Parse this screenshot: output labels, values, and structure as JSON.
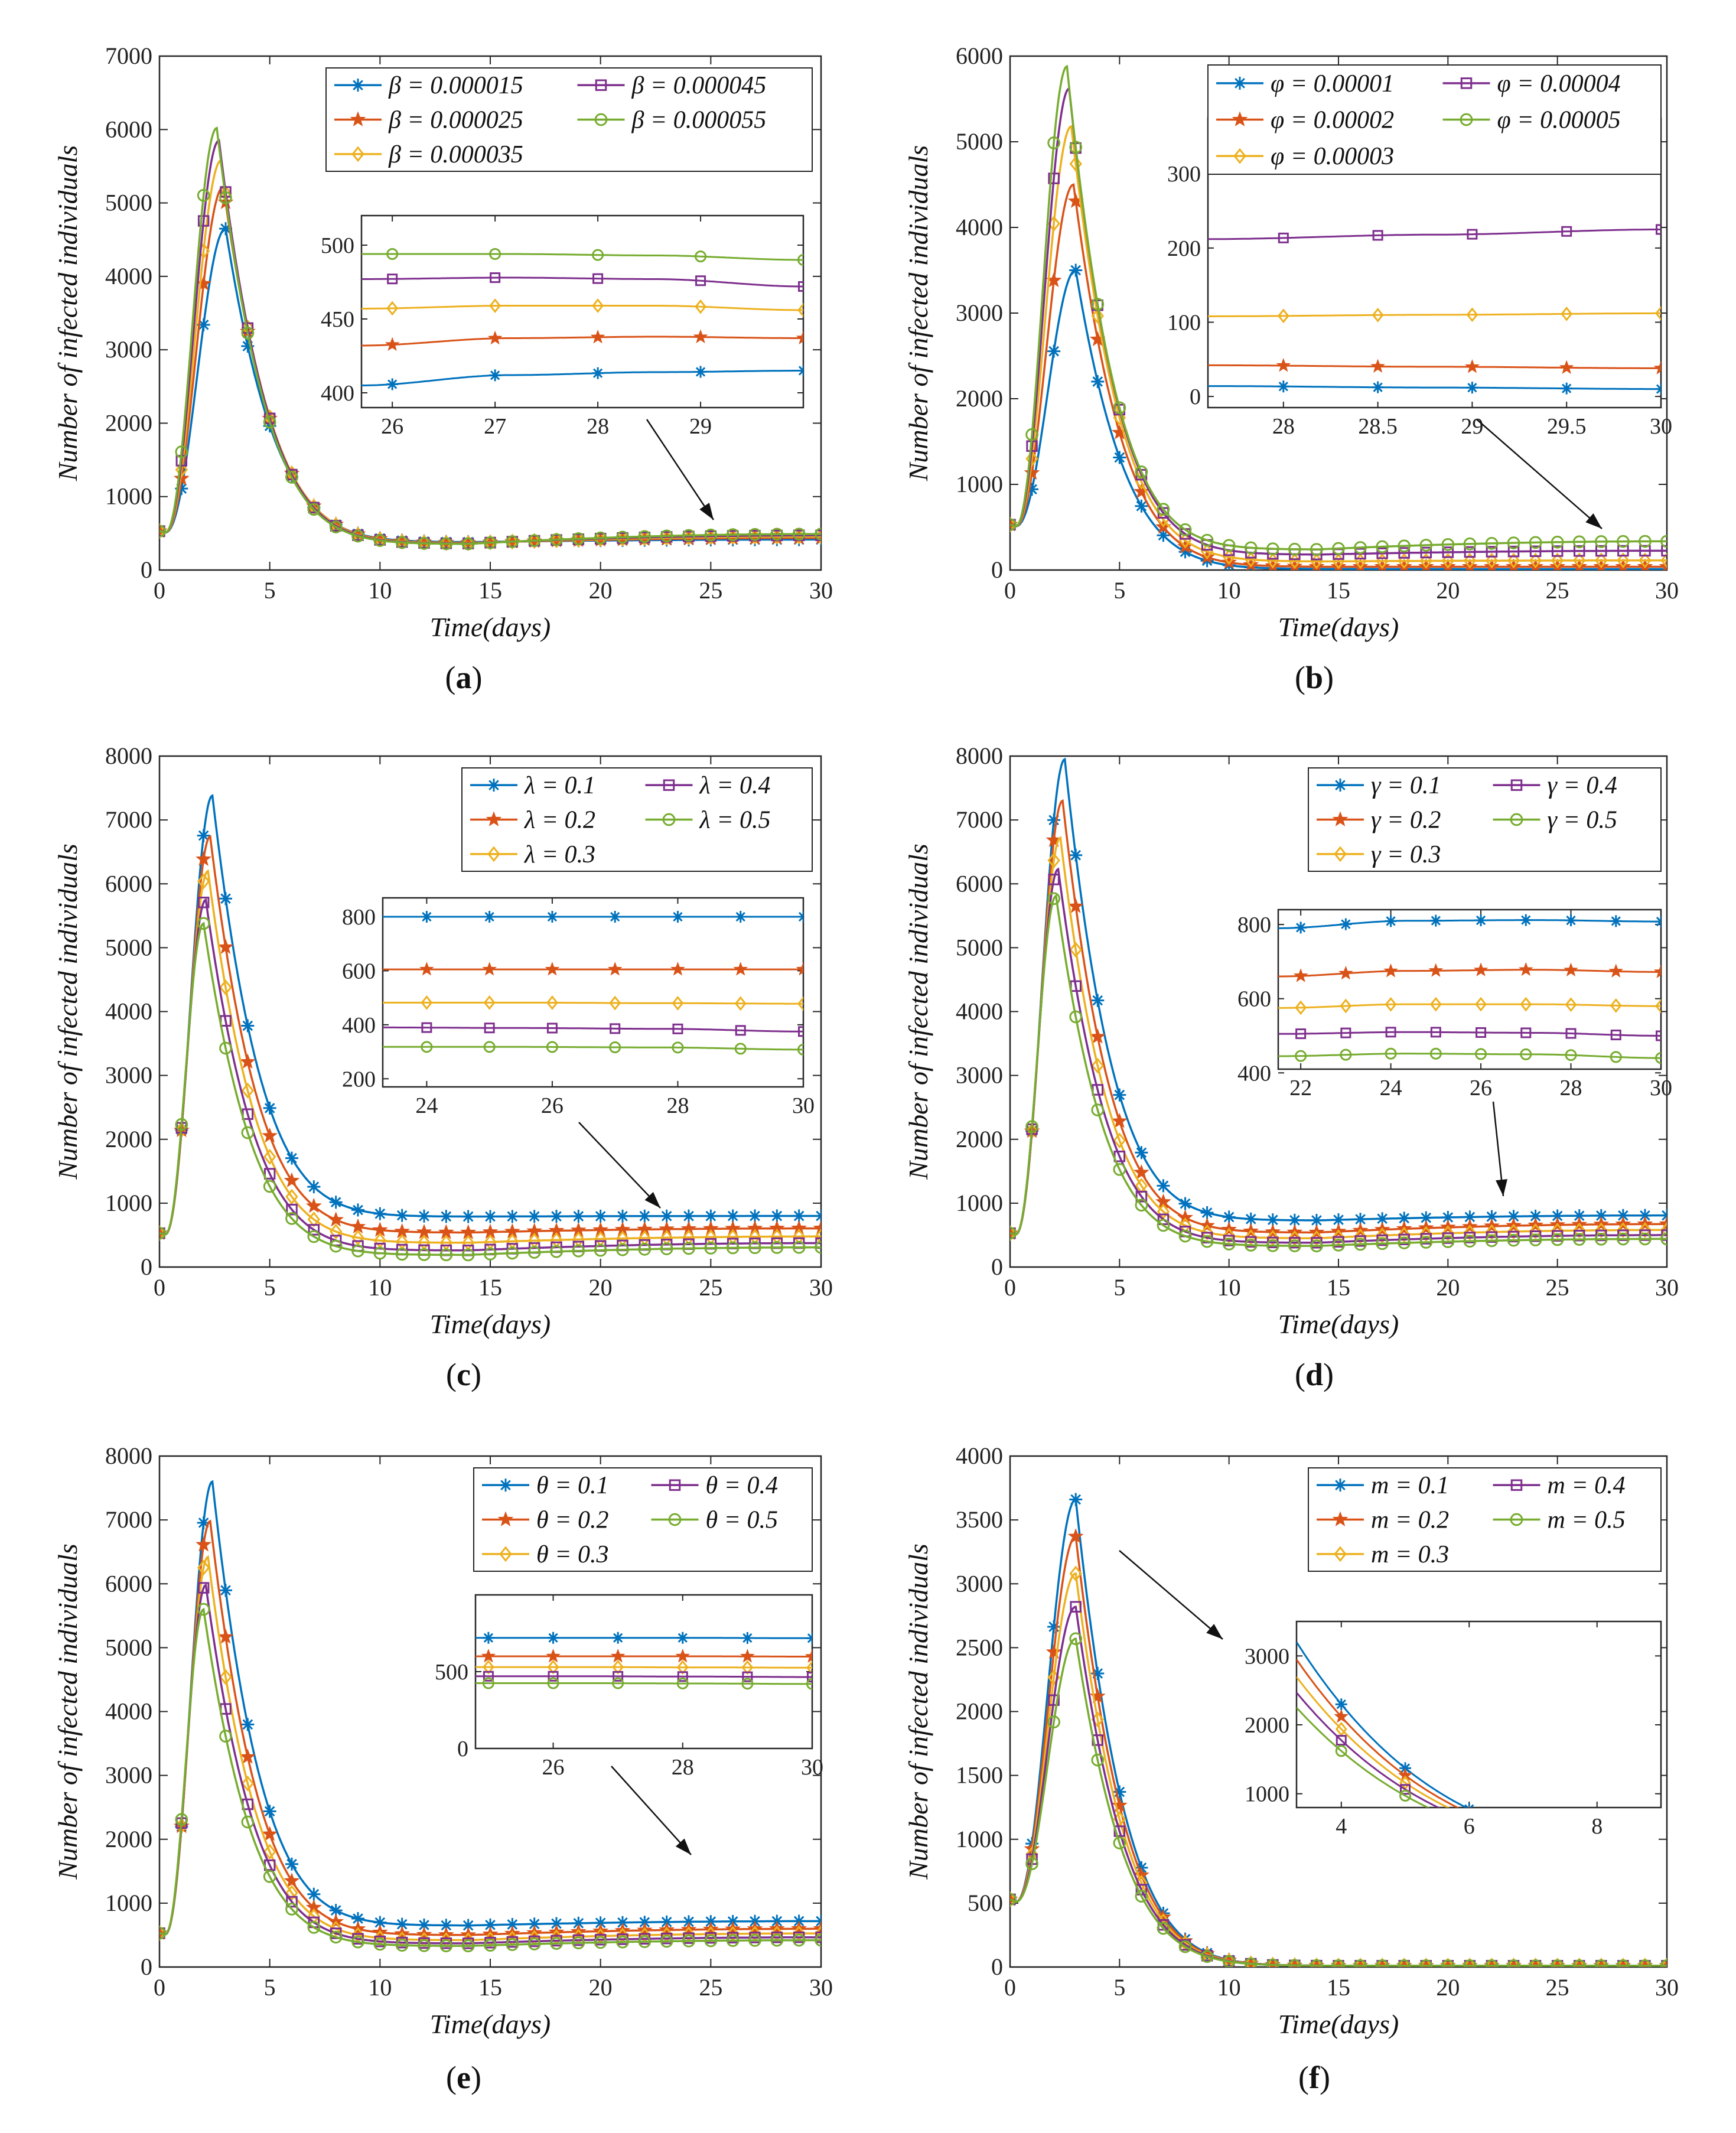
{
  "figure": {
    "colors": [
      "#0072BD",
      "#D95319",
      "#EDB120",
      "#7E2F8E",
      "#77AC30"
    ],
    "markers": [
      "asterisk",
      "star",
      "diamond",
      "square",
      "circle"
    ]
  },
  "chart_data": [
    {
      "type": "line",
      "panel": "(a)",
      "param_symbol": "β",
      "xlabel": "Time(days)",
      "ylabel": "Number of infected individuals",
      "xlim": [
        0,
        30
      ],
      "ylim": [
        0,
        7000
      ],
      "xticks": [
        0,
        5,
        10,
        15,
        20,
        25,
        30
      ],
      "yticks": [
        0,
        1000,
        2000,
        3000,
        4000,
        5000,
        6000,
        7000
      ],
      "series": [
        {
          "name": "β = 0.000015",
          "color": "#0072BD",
          "marker": "asterisk",
          "peak": 4650,
          "peak_t": 3.0,
          "low": 380,
          "tail": [
            405,
            412,
            414,
            415
          ]
        },
        {
          "name": "β = 0.000025",
          "color": "#D95319",
          "marker": "star",
          "peak": 5220,
          "peak_t": 2.9,
          "low": 370,
          "tail": [
            432,
            437,
            438,
            437
          ]
        },
        {
          "name": "β = 0.000035",
          "color": "#EDB120",
          "marker": "diamond",
          "peak": 5580,
          "peak_t": 2.8,
          "low": 365,
          "tail": [
            457,
            459,
            459,
            456
          ]
        },
        {
          "name": "β = 0.000045",
          "color": "#7E2F8E",
          "marker": "square",
          "peak": 5850,
          "peak_t": 2.7,
          "low": 360,
          "tail": [
            477,
            478,
            477,
            472
          ]
        },
        {
          "name": "β = 0.000055",
          "color": "#77AC30",
          "marker": "circle",
          "peak": 6020,
          "peak_t": 2.6,
          "low": 355,
          "tail": [
            494,
            494,
            493,
            490
          ]
        }
      ],
      "inset": {
        "xlim": [
          25.7,
          30
        ],
        "ylim": [
          390,
          520
        ],
        "xticks": [
          26,
          27,
          28,
          29
        ],
        "yticks": [
          400,
          450,
          500
        ]
      }
    },
    {
      "type": "line",
      "panel": "(b)",
      "param_symbol": "φ",
      "xlabel": "Time(days)",
      "ylabel": "Number of infected individuals",
      "xlim": [
        0,
        30
      ],
      "ylim": [
        0,
        6000
      ],
      "xticks": [
        0,
        5,
        10,
        15,
        20,
        25,
        30
      ],
      "yticks": [
        0,
        1000,
        2000,
        3000,
        4000,
        5000,
        6000
      ],
      "series": [
        {
          "name": "φ = 0.00001",
          "color": "#0072BD",
          "marker": "asterisk",
          "peak": 3500,
          "peak_t": 3.0,
          "low": 12,
          "tail": [
            14,
            12,
            10
          ]
        },
        {
          "name": "φ = 0.00002",
          "color": "#D95319",
          "marker": "star",
          "peak": 4500,
          "peak_t": 2.9,
          "low": 38,
          "tail": [
            42,
            40,
            38
          ]
        },
        {
          "name": "φ = 0.00003",
          "color": "#EDB120",
          "marker": "diamond",
          "peak": 5180,
          "peak_t": 2.8,
          "low": 100,
          "tail": [
            108,
            110,
            112
          ]
        },
        {
          "name": "φ = 0.00004",
          "color": "#7E2F8E",
          "marker": "square",
          "peak": 5620,
          "peak_t": 2.7,
          "low": 180,
          "tail": [
            212,
            218,
            225
          ]
        },
        {
          "name": "φ = 0.00005",
          "color": "#77AC30",
          "marker": "circle",
          "peak": 5880,
          "peak_t": 2.6,
          "low": 240,
          "tail": [
            320,
            328,
            335
          ]
        }
      ],
      "inset": {
        "xlim": [
          27.6,
          30
        ],
        "ylim": [
          -15,
          375
        ],
        "xticks": [
          28,
          28.5,
          29,
          29.5,
          30
        ],
        "yticks": [
          0,
          100,
          200,
          300
        ]
      }
    },
    {
      "type": "line",
      "panel": "(c)",
      "param_symbol": "λ",
      "xlabel": "Time(days)",
      "ylabel": "Number of infected individuals",
      "xlim": [
        0,
        30
      ],
      "ylim": [
        0,
        8000
      ],
      "xticks": [
        0,
        5,
        10,
        15,
        20,
        25,
        30
      ],
      "yticks": [
        0,
        1000,
        2000,
        3000,
        4000,
        5000,
        6000,
        7000,
        8000
      ],
      "series": [
        {
          "name": "λ = 0.1",
          "color": "#0072BD",
          "marker": "asterisk",
          "peak": 7380,
          "peak_t": 2.4,
          "low": 790,
          "tail": [
            800,
            800,
            800,
            800
          ]
        },
        {
          "name": "λ = 0.2",
          "color": "#D95319",
          "marker": "star",
          "peak": 6740,
          "peak_t": 2.3,
          "low": 540,
          "tail": [
            605,
            605,
            605,
            605
          ]
        },
        {
          "name": "λ = 0.3",
          "color": "#EDB120",
          "marker": "diamond",
          "peak": 6200,
          "peak_t": 2.2,
          "low": 380,
          "tail": [
            482,
            482,
            480,
            478
          ]
        },
        {
          "name": "λ = 0.4",
          "color": "#7E2F8E",
          "marker": "square",
          "peak": 5750,
          "peak_t": 2.1,
          "low": 260,
          "tail": [
            390,
            388,
            385,
            375
          ]
        },
        {
          "name": "λ = 0.5",
          "color": "#77AC30",
          "marker": "circle",
          "peak": 5380,
          "peak_t": 2.0,
          "low": 190,
          "tail": [
            318,
            318,
            316,
            308
          ]
        }
      ],
      "inset": {
        "xlim": [
          23.3,
          30
        ],
        "ylim": [
          170,
          870
        ],
        "xticks": [
          24,
          26,
          28,
          30
        ],
        "yticks": [
          200,
          400,
          600,
          800
        ]
      }
    },
    {
      "type": "line",
      "panel": "(d)",
      "param_symbol": "γ",
      "xlabel": "Time(days)",
      "ylabel": "Number of infected individuals",
      "xlim": [
        0,
        30
      ],
      "ylim": [
        0,
        8000
      ],
      "xticks": [
        0,
        5,
        10,
        15,
        20,
        25,
        30
      ],
      "yticks": [
        0,
        1000,
        2000,
        3000,
        4000,
        5000,
        6000,
        7000,
        8000
      ],
      "series": [
        {
          "name": "γ = 0.1",
          "color": "#0072BD",
          "marker": "asterisk",
          "peak": 7950,
          "peak_t": 2.5,
          "low": 730,
          "tail": [
            790,
            810,
            812,
            808
          ]
        },
        {
          "name": "γ = 0.2",
          "color": "#D95319",
          "marker": "star",
          "peak": 7300,
          "peak_t": 2.4,
          "low": 540,
          "tail": [
            660,
            675,
            678,
            672
          ]
        },
        {
          "name": "γ = 0.3",
          "color": "#EDB120",
          "marker": "diamond",
          "peak": 6720,
          "peak_t": 2.3,
          "low": 450,
          "tail": [
            575,
            585,
            585,
            580
          ]
        },
        {
          "name": "γ = 0.4",
          "color": "#7E2F8E",
          "marker": "square",
          "peak": 6230,
          "peak_t": 2.2,
          "low": 380,
          "tail": [
            505,
            510,
            508,
            500
          ]
        },
        {
          "name": "γ = 0.5",
          "color": "#77AC30",
          "marker": "circle",
          "peak": 5810,
          "peak_t": 2.1,
          "low": 330,
          "tail": [
            445,
            452,
            450,
            440
          ]
        }
      ],
      "inset": {
        "xlim": [
          21.5,
          30
        ],
        "ylim": [
          410,
          840
        ],
        "xticks": [
          22,
          24,
          26,
          28,
          30
        ],
        "yticks": [
          400,
          600,
          800
        ]
      }
    },
    {
      "type": "line",
      "panel": "(e)",
      "param_symbol": "θ",
      "xlabel": "Time(days)",
      "ylabel": "Number of infected individuals",
      "xlim": [
        0,
        30
      ],
      "ylim": [
        0,
        8000
      ],
      "xticks": [
        0,
        5,
        10,
        15,
        20,
        25,
        30
      ],
      "yticks": [
        0,
        1000,
        2000,
        3000,
        4000,
        5000,
        6000,
        7000,
        8000
      ],
      "series": [
        {
          "name": "θ = 0.1",
          "color": "#0072BD",
          "marker": "asterisk",
          "peak": 7600,
          "peak_t": 2.4,
          "low": 650,
          "tail": [
            720,
            720,
            720,
            718
          ]
        },
        {
          "name": "θ = 0.2",
          "color": "#D95319",
          "marker": "star",
          "peak": 6980,
          "peak_t": 2.3,
          "low": 500,
          "tail": [
            600,
            600,
            600,
            598
          ]
        },
        {
          "name": "θ = 0.3",
          "color": "#EDB120",
          "marker": "diamond",
          "peak": 6420,
          "peak_t": 2.2,
          "low": 420,
          "tail": [
            530,
            530,
            528,
            526
          ]
        },
        {
          "name": "θ = 0.4",
          "color": "#7E2F8E",
          "marker": "square",
          "peak": 5980,
          "peak_t": 2.1,
          "low": 370,
          "tail": [
            470,
            470,
            468,
            465
          ]
        },
        {
          "name": "θ = 0.5",
          "color": "#77AC30",
          "marker": "circle",
          "peak": 5600,
          "peak_t": 2.0,
          "low": 330,
          "tail": [
            425,
            425,
            423,
            420
          ]
        }
      ],
      "inset": {
        "xlim": [
          24.8,
          30
        ],
        "ylim": [
          0,
          1000
        ],
        "xticks": [
          26,
          28,
          30
        ],
        "yticks": [
          0,
          500
        ]
      }
    },
    {
      "type": "line",
      "panel": "(f)",
      "param_symbol": "m",
      "xlabel": "Time(days)",
      "ylabel": "Number of infected individuals",
      "xlim": [
        0,
        30
      ],
      "ylim": [
        0,
        4000
      ],
      "xticks": [
        0,
        5,
        10,
        15,
        20,
        25,
        30
      ],
      "yticks": [
        0,
        500,
        1000,
        1500,
        2000,
        2500,
        3000,
        3500,
        4000
      ],
      "series": [
        {
          "name": "m = 0.1",
          "color": "#0072BD",
          "marker": "asterisk",
          "peak": 3660,
          "peak_t": 3.0,
          "low": 10,
          "tail": []
        },
        {
          "name": "m = 0.2",
          "color": "#D95319",
          "marker": "star",
          "peak": 3370,
          "peak_t": 3.0,
          "low": 10,
          "tail": []
        },
        {
          "name": "m = 0.3",
          "color": "#EDB120",
          "marker": "diamond",
          "peak": 3080,
          "peak_t": 3.0,
          "low": 10,
          "tail": []
        },
        {
          "name": "m = 0.4",
          "color": "#7E2F8E",
          "marker": "square",
          "peak": 2820,
          "peak_t": 3.0,
          "low": 10,
          "tail": []
        },
        {
          "name": "m = 0.5",
          "color": "#77AC30",
          "marker": "circle",
          "peak": 2570,
          "peak_t": 3.0,
          "low": 10,
          "tail": []
        }
      ],
      "inset": {
        "xlim": [
          3.3,
          9
        ],
        "ylim": [
          800,
          3500
        ],
        "xticks": [
          4,
          6,
          8
        ],
        "yticks": [
          1000,
          2000,
          3000
        ]
      }
    }
  ]
}
